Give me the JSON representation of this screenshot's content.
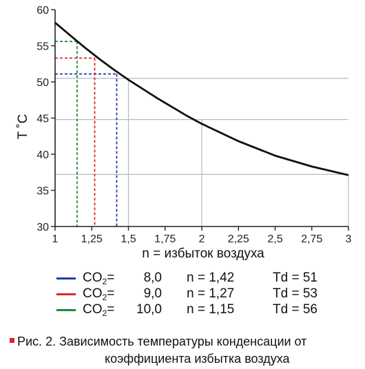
{
  "chart_data": {
    "type": "line",
    "xlabel": "n = избыток воздуха",
    "ylabel": "T ˚C",
    "xlim": [
      1,
      3
    ],
    "ylim": [
      30,
      60
    ],
    "x_ticks": [
      1,
      1.25,
      1.5,
      1.75,
      2,
      2.25,
      2.5,
      2.75,
      3
    ],
    "x_tick_labels": [
      "1",
      "1,25",
      "1,5",
      "1,75",
      "2",
      "2,25",
      "2,5",
      "2,75",
      "3"
    ],
    "y_ticks": [
      30,
      35,
      40,
      45,
      50,
      55,
      60
    ],
    "y_tick_labels": [
      "30",
      "35",
      "40",
      "45",
      "50",
      "55",
      "60"
    ],
    "series": [
      {
        "color": "#111111",
        "x": [
          1.0,
          1.1,
          1.2,
          1.3,
          1.4,
          1.5,
          1.6,
          1.7,
          1.8,
          1.9,
          2.0,
          2.25,
          2.5,
          2.75,
          3.0
        ],
        "y": [
          58.2,
          56.5,
          54.8,
          53.2,
          51.7,
          50.3,
          49.0,
          47.7,
          46.5,
          45.3,
          44.2,
          41.8,
          39.8,
          38.3,
          37.1
        ]
      }
    ],
    "grid_lines": {
      "x": [
        1.5,
        2,
        3
      ],
      "y": [
        37.2,
        44.8,
        50.5
      ]
    },
    "reference_points": [
      {
        "x": 1.42,
        "y": 51.1,
        "color": "#1f3fa6"
      },
      {
        "x": 1.27,
        "y": 53.3,
        "color": "#d42a2a"
      },
      {
        "x": 1.15,
        "y": 55.6,
        "color": "#1d8a3a"
      }
    ]
  },
  "legend": [
    {
      "co2_label": "CO",
      "co2_sub": "2",
      "co2_eq": "=",
      "co2_value": "8,0",
      "n_text": "n = 1,42",
      "td_text": "Td = 51",
      "color": "#1f3fa6"
    },
    {
      "co2_label": "CO",
      "co2_sub": "2",
      "co2_eq": "=",
      "co2_value": "9,0",
      "n_text": "n = 1,27",
      "td_text": "Td = 53",
      "color": "#d42a2a"
    },
    {
      "co2_label": "CO",
      "co2_sub": "2",
      "co2_eq": "=",
      "co2_value": "10,0",
      "n_text": "n = 1,15",
      "td_text": "Td = 56",
      "color": "#1d8a3a"
    }
  ],
  "caption": {
    "line1": "Рис. 2. Зависимость температуры конденсации от",
    "line2": "коэффициента избытка воздуха",
    "marker_color": "#d6262b"
  }
}
